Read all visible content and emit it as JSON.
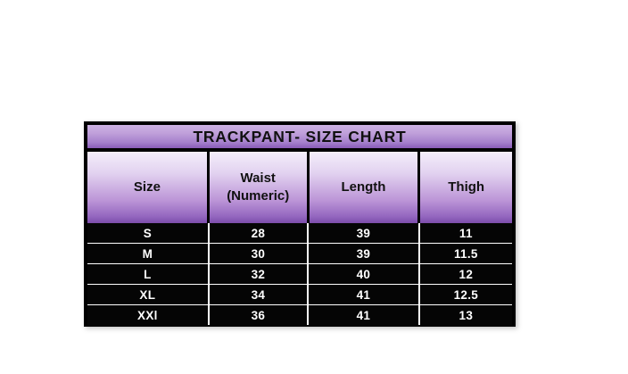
{
  "chart_data": {
    "type": "table",
    "title": "TRACKPANT- SIZE CHART",
    "columns": [
      {
        "label": "Size",
        "sublabel": ""
      },
      {
        "label": "Waist",
        "sublabel": "(Numeric)"
      },
      {
        "label": "Length",
        "sublabel": ""
      },
      {
        "label": "Thigh",
        "sublabel": ""
      }
    ],
    "rows": [
      [
        "S",
        "28",
        "39",
        "11"
      ],
      [
        "M",
        "30",
        "39",
        "11.5"
      ],
      [
        "L",
        "32",
        "40",
        "12"
      ],
      [
        "XL",
        "34",
        "41",
        "12.5"
      ],
      [
        "XXl",
        "36",
        "41",
        "13"
      ]
    ],
    "layout_hints": {
      "header_style": "purple-gradient",
      "body_style": "black-rows-white-text",
      "grid": "white-separators-in-body, black-separators-in-header"
    },
    "colors": {
      "page_background": "#ffffff",
      "grid_border": "#000000",
      "title_gradient_top": "#cdb2e4",
      "title_gradient_bottom": "#8a5cb8",
      "title_text": "#111111",
      "header_gradient_top": "#f4eefa",
      "header_gradient_bottom": "#7c4dab",
      "header_text": "#111111",
      "row_background": "#050505",
      "row_text": "#ffffff"
    }
  }
}
